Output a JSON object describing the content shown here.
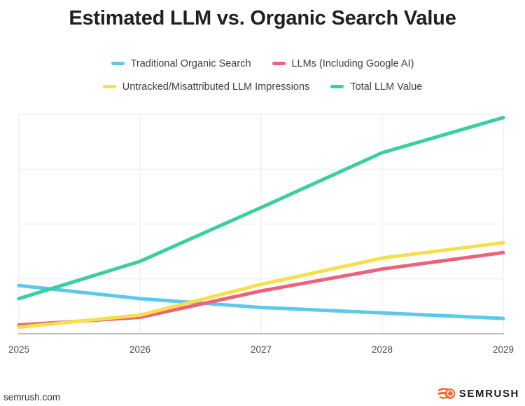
{
  "chart_data": {
    "type": "line",
    "title": "Estimated LLM vs. Organic Search Value",
    "x": [
      "2025",
      "2026",
      "2027",
      "2028",
      "2029"
    ],
    "ylim": [
      0,
      100
    ],
    "y_axis_labels": false,
    "grid": true,
    "legend_position": "top",
    "series": [
      {
        "name": "Traditional Organic Search",
        "color": "#5EC8EC",
        "values": [
          22,
          16,
          12,
          9.5,
          7
        ]
      },
      {
        "name": "LLMs (Including Google AI)",
        "color": "#ED617A",
        "values": [
          4,
          7.5,
          19.5,
          29.5,
          37
        ]
      },
      {
        "name": "Untracked/Misattributed LLM Impressions",
        "color": "#F6DF4D",
        "values": [
          3,
          8.5,
          22.5,
          34.5,
          41.5
        ]
      },
      {
        "name": "Total LLM Value",
        "color": "#3BCFA0",
        "values": [
          16,
          33,
          57.5,
          82.5,
          98.5
        ]
      }
    ]
  },
  "theme": {
    "grid_color": "#EAEAEA",
    "axis_color": "#ABABAB",
    "tick_label_color": "#4B4B4B",
    "title_color": "#1F1F24",
    "legend_text_color": "#3F3F46"
  },
  "footer": {
    "site": "semrush.com",
    "brand": "SEMRUSH",
    "brand_color": "#FF642D"
  }
}
